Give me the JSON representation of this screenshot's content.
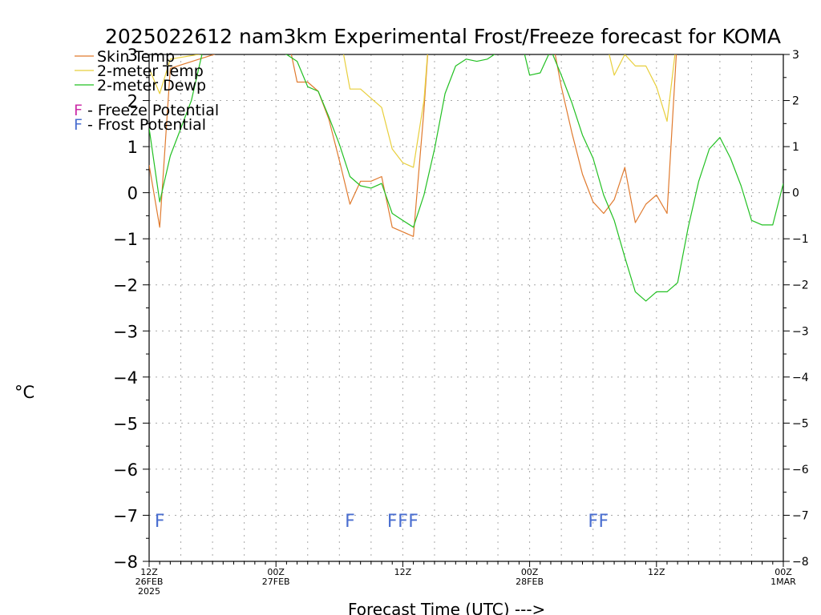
{
  "chart_data": {
    "type": "line",
    "title": "2025022612 nam3km Experimental Frost/Freeze forecast for KOMA",
    "xlabel": "Forecast Time (UTC) --->",
    "ylabel": "°C",
    "ylim": [
      -8,
      3
    ],
    "yticks": [
      -8,
      -7,
      -6,
      -5,
      -4,
      -3,
      -2,
      -1,
      0,
      1,
      2,
      3
    ],
    "xlim": [
      0,
      60
    ],
    "x_tick_labels": [
      {
        "x": 0,
        "lines": [
          "12Z",
          "26FEB",
          "2025"
        ]
      },
      {
        "x": 12,
        "lines": [
          "00Z",
          "27FEB"
        ]
      },
      {
        "x": 24,
        "lines": [
          "12Z"
        ]
      },
      {
        "x": 36,
        "lines": [
          "00Z",
          "28FEB"
        ]
      },
      {
        "x": 48,
        "lines": [
          "12Z"
        ]
      },
      {
        "x": 60,
        "lines": [
          "00Z",
          "1MAR"
        ]
      }
    ],
    "grid": true,
    "legend": [
      {
        "label": "Skin Temp",
        "color": "#e07a2e"
      },
      {
        "label": "2-meter Temp",
        "color": "#e8cf3c"
      },
      {
        "label": "2-meter Dewp",
        "color": "#22c022"
      }
    ],
    "potential_legend": [
      {
        "mark": "F",
        "text": " - Freeze Potential",
        "color": "#cc2ea8"
      },
      {
        "mark": "F",
        "text": " - Frost Potential",
        "color": "#4a6ed0"
      }
    ],
    "series": [
      {
        "name": "Skin Temp",
        "color": "#e07a2e",
        "points": [
          [
            0,
            0.6
          ],
          [
            1,
            -0.75
          ],
          [
            2,
            2.7
          ],
          [
            13,
            3.5
          ],
          [
            14,
            2.4
          ],
          [
            15,
            2.4
          ],
          [
            16,
            2.2
          ],
          [
            17,
            1.6
          ],
          [
            18,
            0.7
          ],
          [
            19,
            -0.25
          ],
          [
            20,
            0.25
          ],
          [
            21,
            0.25
          ],
          [
            22,
            0.35
          ],
          [
            23,
            -0.75
          ],
          [
            24,
            -0.85
          ],
          [
            25,
            -0.95
          ],
          [
            26,
            1.8
          ],
          [
            26.5,
            3.5
          ],
          [
            38,
            3.5
          ],
          [
            39,
            2.3
          ],
          [
            40,
            1.3
          ],
          [
            41,
            0.4
          ],
          [
            42,
            -0.2
          ],
          [
            43,
            -0.45
          ],
          [
            44,
            -0.15
          ],
          [
            45,
            0.55
          ],
          [
            46,
            -0.65
          ],
          [
            47,
            -0.25
          ],
          [
            48,
            -0.05
          ],
          [
            49,
            -0.45
          ],
          [
            50,
            3.5
          ]
        ]
      },
      {
        "name": "2-meter Temp",
        "color": "#e8cf3c",
        "points": [
          [
            0,
            2.7
          ],
          [
            1,
            2.15
          ],
          [
            2,
            2.9
          ],
          [
            18,
            3.5
          ],
          [
            19,
            2.25
          ],
          [
            20,
            2.25
          ],
          [
            21,
            2.05
          ],
          [
            22,
            1.85
          ],
          [
            23,
            0.95
          ],
          [
            24,
            0.65
          ],
          [
            25,
            0.55
          ],
          [
            26,
            2.0
          ],
          [
            26.5,
            3.5
          ],
          [
            43,
            3.5
          ],
          [
            44,
            2.55
          ],
          [
            45,
            3.0
          ],
          [
            46,
            2.75
          ],
          [
            47,
            2.75
          ],
          [
            48,
            2.3
          ],
          [
            49,
            1.55
          ],
          [
            50,
            3.5
          ]
        ]
      },
      {
        "name": "2-meter Dewp",
        "color": "#22c022",
        "points": [
          [
            0,
            1.4
          ],
          [
            1,
            -0.2
          ],
          [
            2,
            0.8
          ],
          [
            3,
            1.4
          ],
          [
            4,
            2.0
          ],
          [
            5,
            3.0
          ],
          [
            5.5,
            3.5
          ],
          [
            13,
            3.0
          ],
          [
            14,
            2.85
          ],
          [
            15,
            2.3
          ],
          [
            16,
            2.2
          ],
          [
            17,
            1.65
          ],
          [
            18,
            1.05
          ],
          [
            19,
            0.35
          ],
          [
            20,
            0.15
          ],
          [
            21,
            0.1
          ],
          [
            22,
            0.2
          ],
          [
            23,
            -0.45
          ],
          [
            24,
            -0.6
          ],
          [
            25,
            -0.75
          ],
          [
            26,
            -0.05
          ],
          [
            27,
            0.95
          ],
          [
            28,
            2.15
          ],
          [
            29,
            2.75
          ],
          [
            30,
            2.9
          ],
          [
            31,
            2.85
          ],
          [
            32,
            2.9
          ],
          [
            33,
            3.05
          ],
          [
            34,
            3.25
          ],
          [
            35,
            3.5
          ],
          [
            36,
            2.55
          ],
          [
            37,
            2.6
          ],
          [
            38,
            3.1
          ],
          [
            39,
            2.55
          ],
          [
            40,
            1.95
          ],
          [
            41,
            1.25
          ],
          [
            42,
            0.75
          ],
          [
            43,
            -0.05
          ],
          [
            44,
            -0.6
          ],
          [
            45,
            -1.4
          ],
          [
            46,
            -2.15
          ],
          [
            47,
            -2.35
          ],
          [
            48,
            -2.15
          ],
          [
            49,
            -2.15
          ],
          [
            50,
            -1.95
          ],
          [
            51,
            -0.75
          ],
          [
            52,
            0.25
          ],
          [
            53,
            0.95
          ],
          [
            54,
            1.2
          ],
          [
            55,
            0.75
          ],
          [
            56,
            0.15
          ],
          [
            57,
            -0.6
          ],
          [
            58,
            -0.7
          ],
          [
            59,
            -0.7
          ],
          [
            60,
            0.2
          ]
        ]
      }
    ],
    "frost_marks": [
      {
        "x": 1,
        "y": -7.1,
        "type": "frost"
      },
      {
        "x": 19,
        "y": -7.1,
        "type": "frost"
      },
      {
        "x": 23,
        "y": -7.1,
        "type": "frost"
      },
      {
        "x": 24,
        "y": -7.1,
        "type": "frost"
      },
      {
        "x": 25,
        "y": -7.1,
        "type": "frost"
      },
      {
        "x": 42,
        "y": -7.1,
        "type": "frost"
      },
      {
        "x": 43,
        "y": -7.1,
        "type": "frost"
      }
    ],
    "frost_mark_glyph": "F"
  }
}
